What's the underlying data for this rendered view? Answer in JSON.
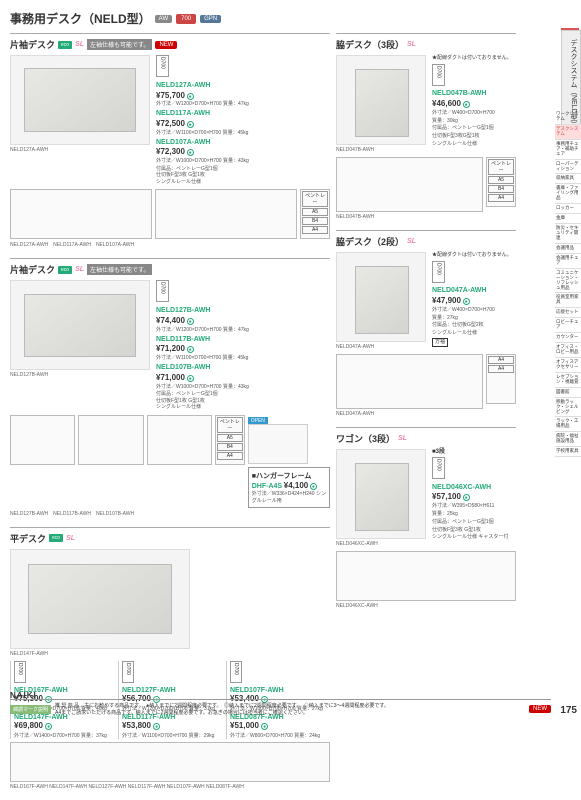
{
  "page": {
    "number": 175,
    "brand": "NAIKI"
  },
  "header": {
    "title": "事務用デスク（NELD型）",
    "tags": [
      "AW",
      "700",
      "GPN"
    ]
  },
  "sideTab02": "02",
  "sideTabText": "デスクシステム（NELD型）",
  "sideNav": [
    {
      "label": "ワークシステム",
      "active": false
    },
    {
      "label": "デスクシステム",
      "active": true
    },
    {
      "label": "事務用チェア・補助チェア",
      "active": false
    },
    {
      "label": "ローパーティション",
      "active": false
    },
    {
      "label": "収納家具",
      "active": false
    },
    {
      "label": "書庫・ファイリング用品",
      "active": false
    },
    {
      "label": "ロッカー",
      "active": false
    },
    {
      "label": "金庫",
      "active": false
    },
    {
      "label": "防災・セキュリティ関連",
      "active": false
    },
    {
      "label": "会議用品",
      "active": false
    },
    {
      "label": "会議用チェア",
      "active": false
    },
    {
      "label": "コミュニケーション・リフレッシュ用品",
      "active": false
    },
    {
      "label": "役員室用家具",
      "active": false
    },
    {
      "label": "応接セット",
      "active": false
    },
    {
      "label": "ロビーチェア",
      "active": false
    },
    {
      "label": "カウンター",
      "active": false
    },
    {
      "label": "オフィス・ロビー用品",
      "active": false
    },
    {
      "label": "オフィスアクセサリー",
      "active": false
    },
    {
      "label": "レセプション・視聴覚",
      "active": false
    },
    {
      "label": "図書館",
      "active": false
    },
    {
      "label": "移動ラック・シェルビング",
      "active": false
    },
    {
      "label": "ラック・工場用品",
      "active": false
    },
    {
      "label": "病院・福祉施設用品",
      "active": false
    },
    {
      "label": "学校用家具",
      "active": false
    }
  ],
  "sections": {
    "katasodeA": {
      "title": "片袖デスク",
      "iconNote": "左袖仕様も可能です。",
      "new": true,
      "imgCaption": "NELD127A-AWH",
      "items": [
        {
          "model": "NELD127A-AWH",
          "price": "¥75,700",
          "dims": "外寸法／W1200×D700×H700 質量：47kg"
        },
        {
          "model": "NELD117A-AWH",
          "price": "¥72,500",
          "dims": "外寸法／W1100×D700×H700 質量：45kg"
        },
        {
          "model": "NELD107A-AWH",
          "price": "¥72,300",
          "dims": "外寸法／W1000×D700×H700 質量：43kg"
        }
      ],
      "extra": "付属品：ペントレーG型1個\n仕切板F型3枚 G型1枚\nシングルレール仕様",
      "diagCaption": "NELD127A-AWH　NELD117A-AWH　NELD107A-AWH",
      "sizeBadges": [
        "ペントレー",
        "A5",
        "B4",
        "A4"
      ]
    },
    "katasodeB": {
      "title": "片袖デスク",
      "iconNote": "左袖仕様も可能です。",
      "imgCaption": "NELD127B-AWH",
      "items": [
        {
          "model": "NELD127B-AWH",
          "price": "¥74,400",
          "dims": "外寸法／W1200×D700×H700 質量：47kg"
        },
        {
          "model": "NELD117B-AWH",
          "price": "¥71,200",
          "dims": "外寸法／W1100×D700×H700 質量：45kg"
        },
        {
          "model": "NELD107B-AWH",
          "price": "¥71,000",
          "dims": "外寸法／W1000×D700×H700 質量：43kg"
        }
      ],
      "extra": "付属品：ペントレーG型1個\n仕切板F型1枚 G型1枚\nシングルレール仕様",
      "diagCaption": "NELD127B-AWH　NELD117B-AWH　NELD107B-AWH",
      "sizeBadges": [
        "ペントレー",
        "A5",
        "B4",
        "A4"
      ],
      "hanger": {
        "title": "■ハンガーフレーム",
        "model": "DHF-A4S",
        "price": "¥4,100",
        "spec": "外寸法／W336×D424×H240\nシングルレール用",
        "openLabel": "OPEN"
      }
    },
    "hira": {
      "title": "平デスク",
      "imgCaption": "NELD147F-AWH",
      "cols": [
        {
          "items": [
            {
              "model": "NELD167F-AWH",
              "price": "¥75,300",
              "dims": "外寸法／W1600×D700×H700 質量：40kg"
            },
            {
              "model": "NELD147F-AWH",
              "price": "¥69,800",
              "dims": "外寸法／W1400×D700×H700 質量：37kg"
            }
          ]
        },
        {
          "items": [
            {
              "model": "NELD127F-AWH",
              "price": "¥56,700",
              "dims": "外寸法／W1200×D700×H700 質量：31kg"
            },
            {
              "model": "NELD117F-AWH",
              "price": "¥53,800",
              "dims": "外寸法／W1100×D700×H700 質量：29kg"
            }
          ]
        },
        {
          "items": [
            {
              "model": "NELD107F-AWH",
              "price": "¥53,400",
              "dims": "外寸法／W1000×D700×H700 質量：27kg"
            },
            {
              "model": "NELD087F-AWH",
              "price": "¥51,000",
              "dims": "外寸法／W800×D700×H700 質量：24kg"
            }
          ]
        }
      ],
      "diagCaption": "NELD167F-AWH NELD147F-AWH NELD127F-AWH NELD117F-AWH NELD107F-AWH NELD087F-AWH"
    },
    "waki3": {
      "title": "脇デスク（3段）",
      "ductNote": "配線ダクトは付いておりません。",
      "imgCaption": "NELD047B-AWH",
      "items": [
        {
          "model": "NELD047B-AWH",
          "price": "¥46,600",
          "dims": "外寸法／W400×D700×H700\n質量：30kg\n付属品：ペントレーG型1個\n仕切板F型3枚G型1枚\nシングルレール仕様"
        }
      ],
      "diagCaption": "NELD047B-AWH",
      "sizeBadges": [
        "ペントレー",
        "A5",
        "B4",
        "A4"
      ]
    },
    "waki2": {
      "title": "脇デスク（2段）",
      "ductNote": "配線ダクトは付いておりません。",
      "imgCaption": "NELD047A-AWH",
      "items": [
        {
          "model": "NELD047A-AWH",
          "price": "¥47,900",
          "dims": "外寸法／W400×D700×H700\n質量：27kg\n付属品：仕切板G型2枚\nシングルレール仕様"
        }
      ],
      "diagCaption": "NELD047A-AWH",
      "sizeBadges": [
        "A4",
        "A4"
      ],
      "squareLabel": "方袖"
    },
    "wagon": {
      "title": "ワゴン（3段）",
      "squareLabel": "■3段",
      "imgCaption": "NELD046XC-AWH",
      "items": [
        {
          "model": "NELD046XC-AWH",
          "price": "¥57,100",
          "dims": "外寸法／W395×D580×H611\n質量：25kg\n付属品：ペントレーG型1個\n仕切板F型3枚 G型1枚\nシングルレール仕様 キャスター付"
        }
      ],
      "diagCaption": "NELD046XC-AWH"
    }
  },
  "footer": {
    "leftLabel": "綿調マーク説明",
    "legend": "推 奨 商 品…主にお勧めする商品です。　●納入までに2週間程度必要です。　◎納入までに2週間程度必要です。　◇納入までに3～4週間程度必要です。\nA4までご請求いただける商品です。納入までに2週間程度必要です。お急ぎの場合には担当者にご確認ください。",
    "newBadge": "NEW"
  },
  "d700": "D700"
}
